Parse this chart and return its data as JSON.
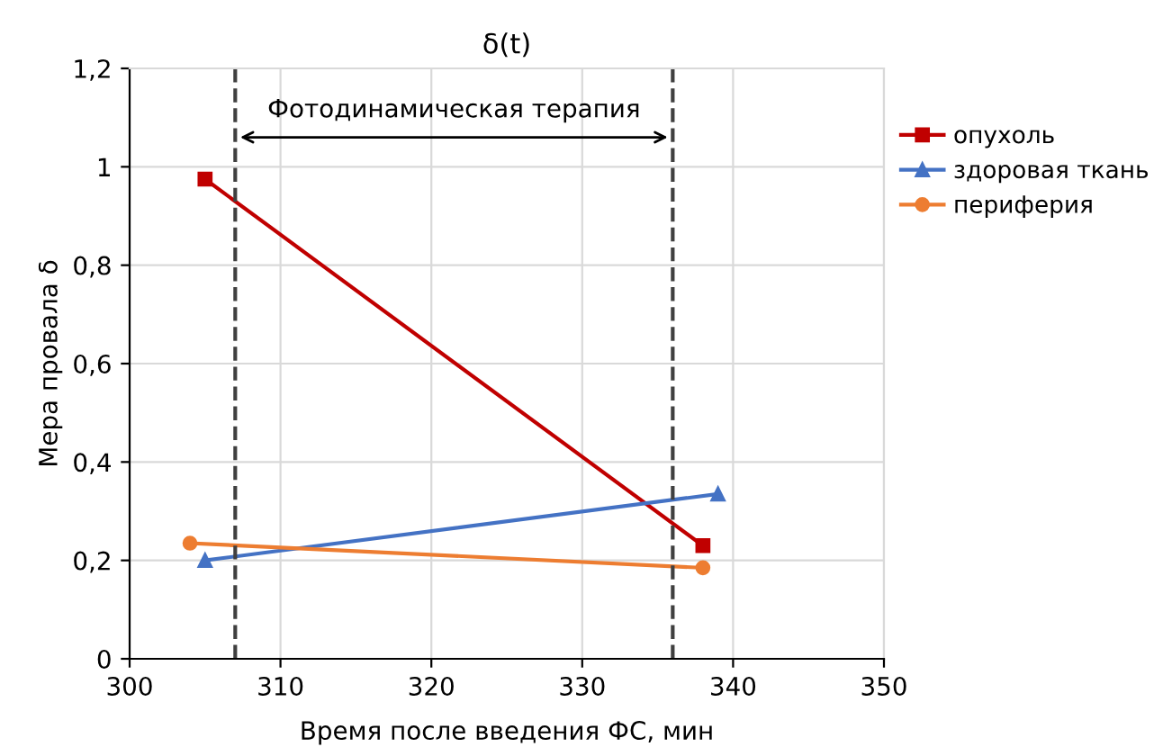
{
  "chart_data": {
    "type": "line",
    "title": "δ(t)",
    "xlabel": "Время после введения ФС, мин",
    "ylabel": "Мера провала δ",
    "series": [
      {
        "name": "опухоль",
        "color": "#c00000",
        "marker": "square",
        "x": [
          305,
          338
        ],
        "values": [
          0.975,
          0.23
        ]
      },
      {
        "name": "здоровая ткань",
        "color": "#4472c4",
        "marker": "triangle",
        "x": [
          305,
          339
        ],
        "values": [
          0.2,
          0.335
        ]
      },
      {
        "name": "периферия",
        "color": "#ed7d31",
        "marker": "circle",
        "x": [
          304,
          338
        ],
        "values": [
          0.235,
          0.185
        ]
      }
    ],
    "xlim": [
      300,
      350
    ],
    "xticks": [
      300,
      310,
      320,
      330,
      340,
      350
    ],
    "ylim": [
      0,
      1.2
    ],
    "yticks": [
      {
        "value": 0,
        "label": "0"
      },
      {
        "value": 0.2,
        "label": "0,2"
      },
      {
        "value": 0.4,
        "label": "0,4"
      },
      {
        "value": 0.6,
        "label": "0,6"
      },
      {
        "value": 0.8,
        "label": "0,8"
      },
      {
        "value": 1,
        "label": "1"
      },
      {
        "value": 1.2,
        "label": "1,2"
      }
    ],
    "ref_lines": [
      {
        "axis": "x",
        "value": 307,
        "color": "#404040",
        "line_style": "dashed"
      },
      {
        "axis": "x",
        "value": 336,
        "color": "#404040",
        "line_style": "dashed"
      }
    ],
    "annotations": [
      "Фотодинамическая терапия"
    ],
    "grid": true,
    "legend": "right",
    "line_style": "solid"
  }
}
